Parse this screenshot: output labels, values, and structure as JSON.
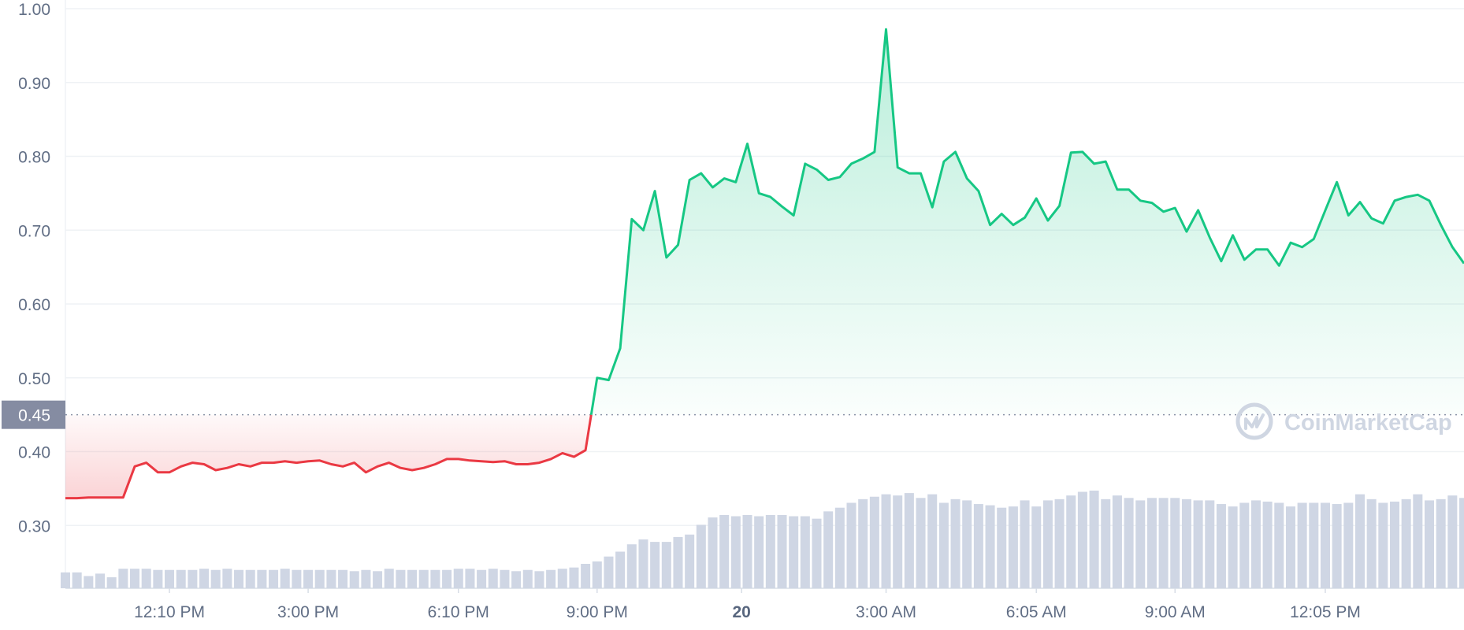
{
  "chart_data": {
    "type": "line",
    "ylim": [
      0.215,
      1.0
    ],
    "y_ticks": [
      "1.00",
      "0.90",
      "0.80",
      "0.70",
      "0.60",
      "0.50",
      "0.40",
      "0.30"
    ],
    "y_tick_values": [
      1.0,
      0.9,
      0.8,
      0.7,
      0.6,
      0.5,
      0.4,
      0.3
    ],
    "x_ticks": [
      "12:10 PM",
      "3:00 PM",
      "6:10 PM",
      "9:00 PM",
      "20",
      "3:00 AM",
      "6:05 AM",
      "9:00 AM",
      "12:05 PM"
    ],
    "x_tick_index": [
      9,
      21,
      34,
      46,
      58.5,
      71,
      84,
      96,
      109
    ],
    "x_tick_bold": [
      false,
      false,
      false,
      false,
      true,
      false,
      false,
      false,
      false
    ],
    "reference_price": 0.45,
    "reference_label": "0.45",
    "colors": {
      "up": "#16c784",
      "down": "#ea3943",
      "volume": "#cfd6e4",
      "reference_label_bg": "#858ca2"
    },
    "series": [
      {
        "values": [
          0.337,
          0.337,
          0.338,
          0.338,
          0.338,
          0.338,
          0.38,
          0.385,
          0.372,
          0.372,
          0.38,
          0.385,
          0.383,
          0.375,
          0.378,
          0.383,
          0.38,
          0.385,
          0.385,
          0.387,
          0.385,
          0.387,
          0.388,
          0.383,
          0.38,
          0.385,
          0.372,
          0.38,
          0.385,
          0.378,
          0.375,
          0.378,
          0.383,
          0.39,
          0.39,
          0.388,
          0.387,
          0.386,
          0.387,
          0.383,
          0.383,
          0.385,
          0.39,
          0.398,
          0.393,
          0.402,
          0.5,
          0.497,
          0.54,
          0.715,
          0.7,
          0.753,
          0.663,
          0.68,
          0.768,
          0.777,
          0.758,
          0.77,
          0.765,
          0.817,
          0.75,
          0.745,
          0.732,
          0.72,
          0.79,
          0.782,
          0.768,
          0.772,
          0.79,
          0.797,
          0.806,
          0.972,
          0.785,
          0.777,
          0.777,
          0.731,
          0.793,
          0.806,
          0.77,
          0.753,
          0.707,
          0.722,
          0.707,
          0.717,
          0.743,
          0.713,
          0.733,
          0.805,
          0.806,
          0.79,
          0.793,
          0.755,
          0.755,
          0.74,
          0.737,
          0.725,
          0.73,
          0.698,
          0.727,
          0.69,
          0.658,
          0.693,
          0.66,
          0.674,
          0.674,
          0.652,
          0.683,
          0.677,
          0.688,
          0.727,
          0.765,
          0.72,
          0.738,
          0.716,
          0.709,
          0.74,
          0.745,
          0.748,
          0.74,
          0.707,
          0.677,
          0.655
        ]
      }
    ],
    "volume": [
      0.13,
      0.13,
      0.1,
      0.12,
      0.09,
      0.16,
      0.16,
      0.16,
      0.15,
      0.15,
      0.15,
      0.15,
      0.16,
      0.15,
      0.16,
      0.15,
      0.15,
      0.15,
      0.15,
      0.16,
      0.15,
      0.15,
      0.15,
      0.15,
      0.15,
      0.14,
      0.15,
      0.14,
      0.16,
      0.15,
      0.15,
      0.15,
      0.15,
      0.15,
      0.16,
      0.16,
      0.15,
      0.16,
      0.15,
      0.14,
      0.15,
      0.14,
      0.15,
      0.16,
      0.17,
      0.2,
      0.22,
      0.26,
      0.3,
      0.36,
      0.4,
      0.38,
      0.38,
      0.42,
      0.44,
      0.52,
      0.58,
      0.6,
      0.59,
      0.6,
      0.59,
      0.6,
      0.6,
      0.59,
      0.59,
      0.57,
      0.63,
      0.66,
      0.7,
      0.73,
      0.75,
      0.77,
      0.76,
      0.78,
      0.74,
      0.77,
      0.7,
      0.73,
      0.72,
      0.69,
      0.68,
      0.66,
      0.67,
      0.72,
      0.67,
      0.72,
      0.73,
      0.76,
      0.79,
      0.8,
      0.73,
      0.76,
      0.74,
      0.72,
      0.74,
      0.74,
      0.74,
      0.73,
      0.72,
      0.72,
      0.69,
      0.67,
      0.7,
      0.72,
      0.71,
      0.7,
      0.67,
      0.7,
      0.7,
      0.7,
      0.69,
      0.7,
      0.77,
      0.73,
      0.7,
      0.71,
      0.73,
      0.77,
      0.72,
      0.73,
      0.76,
      0.74,
      0.72,
      0.71,
      0.69
    ]
  },
  "watermark": {
    "text": "CoinMarketCap"
  }
}
